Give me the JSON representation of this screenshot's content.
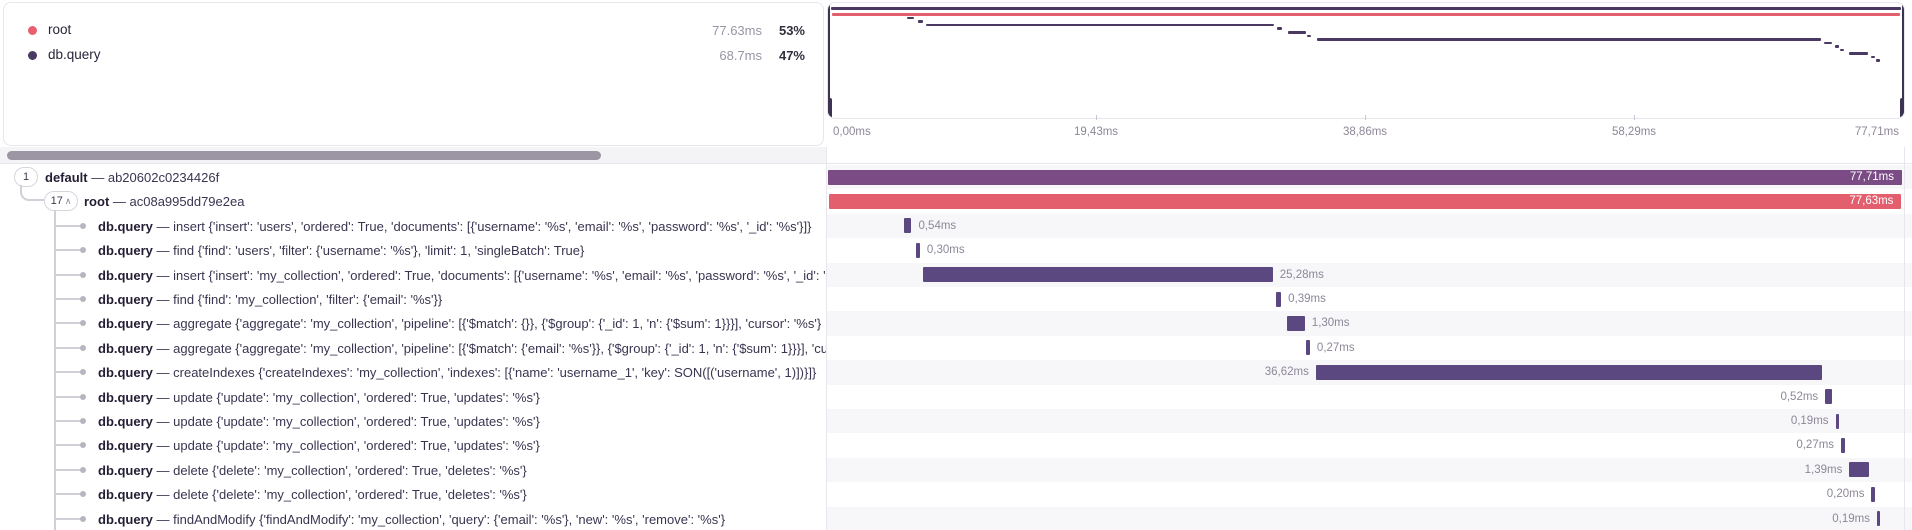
{
  "legend": {
    "items": [
      {
        "label": "root",
        "color": "#ea5f6f",
        "duration": "77.63ms",
        "percent": "53%"
      },
      {
        "label": "db.query",
        "color": "#4a3a63",
        "duration": "68.7ms",
        "percent": "47%"
      }
    ]
  },
  "axis": {
    "labels": [
      "0,00ms",
      "19,43ms",
      "38,86ms",
      "58,29ms",
      "77,71ms"
    ]
  },
  "colors": {
    "default_bar": "#7a4b85",
    "root_bar": "#e45f6e",
    "db_bar": "#5b4880",
    "minimap_purple": "#4a3a63",
    "minimap_red": "#e45f6e"
  },
  "separator": "—",
  "trace": {
    "total_ms": 77.71,
    "spans": [
      {
        "badge": "1",
        "badge_chevron": false,
        "name": "default",
        "desc": "ab20602c0234426f",
        "start_ms": 0,
        "dur_ms": 77.71,
        "duration_label": "77,71ms",
        "color": "default",
        "label_side": "inside",
        "depth": 0
      },
      {
        "badge": "17",
        "badge_chevron": true,
        "name": "root",
        "desc": "ac08a995dd79e2ea",
        "start_ms": 0.04,
        "dur_ms": 77.63,
        "duration_label": "77,63ms",
        "color": "root",
        "label_side": "inside",
        "depth": 1
      },
      {
        "badge": "",
        "badge_chevron": false,
        "name": "db.query",
        "desc": "insert {'insert': 'users', 'ordered': True, 'documents': [{'username': '%s', 'email': '%s', 'password': '%s', '_id': '%s'}]}",
        "start_ms": 5.5,
        "dur_ms": 0.54,
        "duration_label": "0,54ms",
        "color": "db",
        "label_side": "right",
        "depth": 2
      },
      {
        "badge": "",
        "badge_chevron": false,
        "name": "db.query",
        "desc": "find {'find': 'users', 'filter': {'username': '%s'}, 'limit': 1, 'singleBatch': True}",
        "start_ms": 6.35,
        "dur_ms": 0.3,
        "duration_label": "0,30ms",
        "color": "db",
        "label_side": "right",
        "depth": 2
      },
      {
        "badge": "",
        "badge_chevron": false,
        "name": "db.query",
        "desc": "insert {'insert': 'my_collection', 'ordered': True, 'documents': [{'username': '%s', 'email': '%s', 'password': '%s', '_id': '%s'}, {'u",
        "start_ms": 6.9,
        "dur_ms": 25.28,
        "duration_label": "25,28ms",
        "color": "db",
        "label_side": "right",
        "depth": 2
      },
      {
        "badge": "",
        "badge_chevron": false,
        "name": "db.query",
        "desc": "find {'find': 'my_collection', 'filter': {'email': '%s'}}",
        "start_ms": 32.4,
        "dur_ms": 0.39,
        "duration_label": "0,39ms",
        "color": "db",
        "label_side": "right",
        "depth": 2
      },
      {
        "badge": "",
        "badge_chevron": false,
        "name": "db.query",
        "desc": "aggregate {'aggregate': 'my_collection', 'pipeline': [{'$match': {}}, {'$group': {'_id': 1, 'n': {'$sum': 1}}}], 'cursor': '%s'}",
        "start_ms": 33.2,
        "dur_ms": 1.3,
        "duration_label": "1,30ms",
        "color": "db",
        "label_side": "right",
        "depth": 2
      },
      {
        "badge": "",
        "badge_chevron": false,
        "name": "db.query",
        "desc": "aggregate {'aggregate': 'my_collection', 'pipeline': [{'$match': {'email': '%s'}}, {'$group': {'_id': 1, 'n': {'$sum': 1}}}], 'cursor': '",
        "start_ms": 34.6,
        "dur_ms": 0.27,
        "duration_label": "0,27ms",
        "color": "db",
        "label_side": "right",
        "depth": 2
      },
      {
        "badge": "",
        "badge_chevron": false,
        "name": "db.query",
        "desc": "createIndexes {'createIndexes': 'my_collection', 'indexes': [{'name': 'username_1', 'key': SON([('username', 1)])}]}",
        "start_ms": 35.3,
        "dur_ms": 36.62,
        "duration_label": "36,62ms",
        "color": "db",
        "label_side": "left",
        "depth": 2
      },
      {
        "badge": "",
        "badge_chevron": false,
        "name": "db.query",
        "desc": "update {'update': 'my_collection', 'ordered': True, 'updates': '%s'}",
        "start_ms": 72.15,
        "dur_ms": 0.52,
        "duration_label": "0,52ms",
        "color": "db",
        "label_side": "left",
        "depth": 2
      },
      {
        "badge": "",
        "badge_chevron": false,
        "name": "db.query",
        "desc": "update {'update': 'my_collection', 'ordered': True, 'updates': '%s'}",
        "start_ms": 72.9,
        "dur_ms": 0.19,
        "duration_label": "0,19ms",
        "color": "db",
        "label_side": "left",
        "depth": 2
      },
      {
        "badge": "",
        "badge_chevron": false,
        "name": "db.query",
        "desc": "update {'update': 'my_collection', 'ordered': True, 'updates': '%s'}",
        "start_ms": 73.3,
        "dur_ms": 0.27,
        "duration_label": "0,27ms",
        "color": "db",
        "label_side": "left",
        "depth": 2
      },
      {
        "badge": "",
        "badge_chevron": false,
        "name": "db.query",
        "desc": "delete {'delete': 'my_collection', 'ordered': True, 'deletes': '%s'}",
        "start_ms": 73.9,
        "dur_ms": 1.39,
        "duration_label": "1,39ms",
        "color": "db",
        "label_side": "left",
        "depth": 2
      },
      {
        "badge": "",
        "badge_chevron": false,
        "name": "db.query",
        "desc": "delete {'delete': 'my_collection', 'ordered': True, 'deletes': '%s'}",
        "start_ms": 75.5,
        "dur_ms": 0.2,
        "duration_label": "0,20ms",
        "color": "db",
        "label_side": "left",
        "depth": 2
      },
      {
        "badge": "",
        "badge_chevron": false,
        "name": "db.query",
        "desc": "findAndModify {'findAndModify': 'my_collection', 'query': {'email': '%s'}, 'new': '%s', 'remove': '%s'}",
        "start_ms": 75.9,
        "dur_ms": 0.19,
        "duration_label": "0,19ms",
        "color": "db",
        "label_side": "left",
        "depth": 2
      }
    ]
  }
}
